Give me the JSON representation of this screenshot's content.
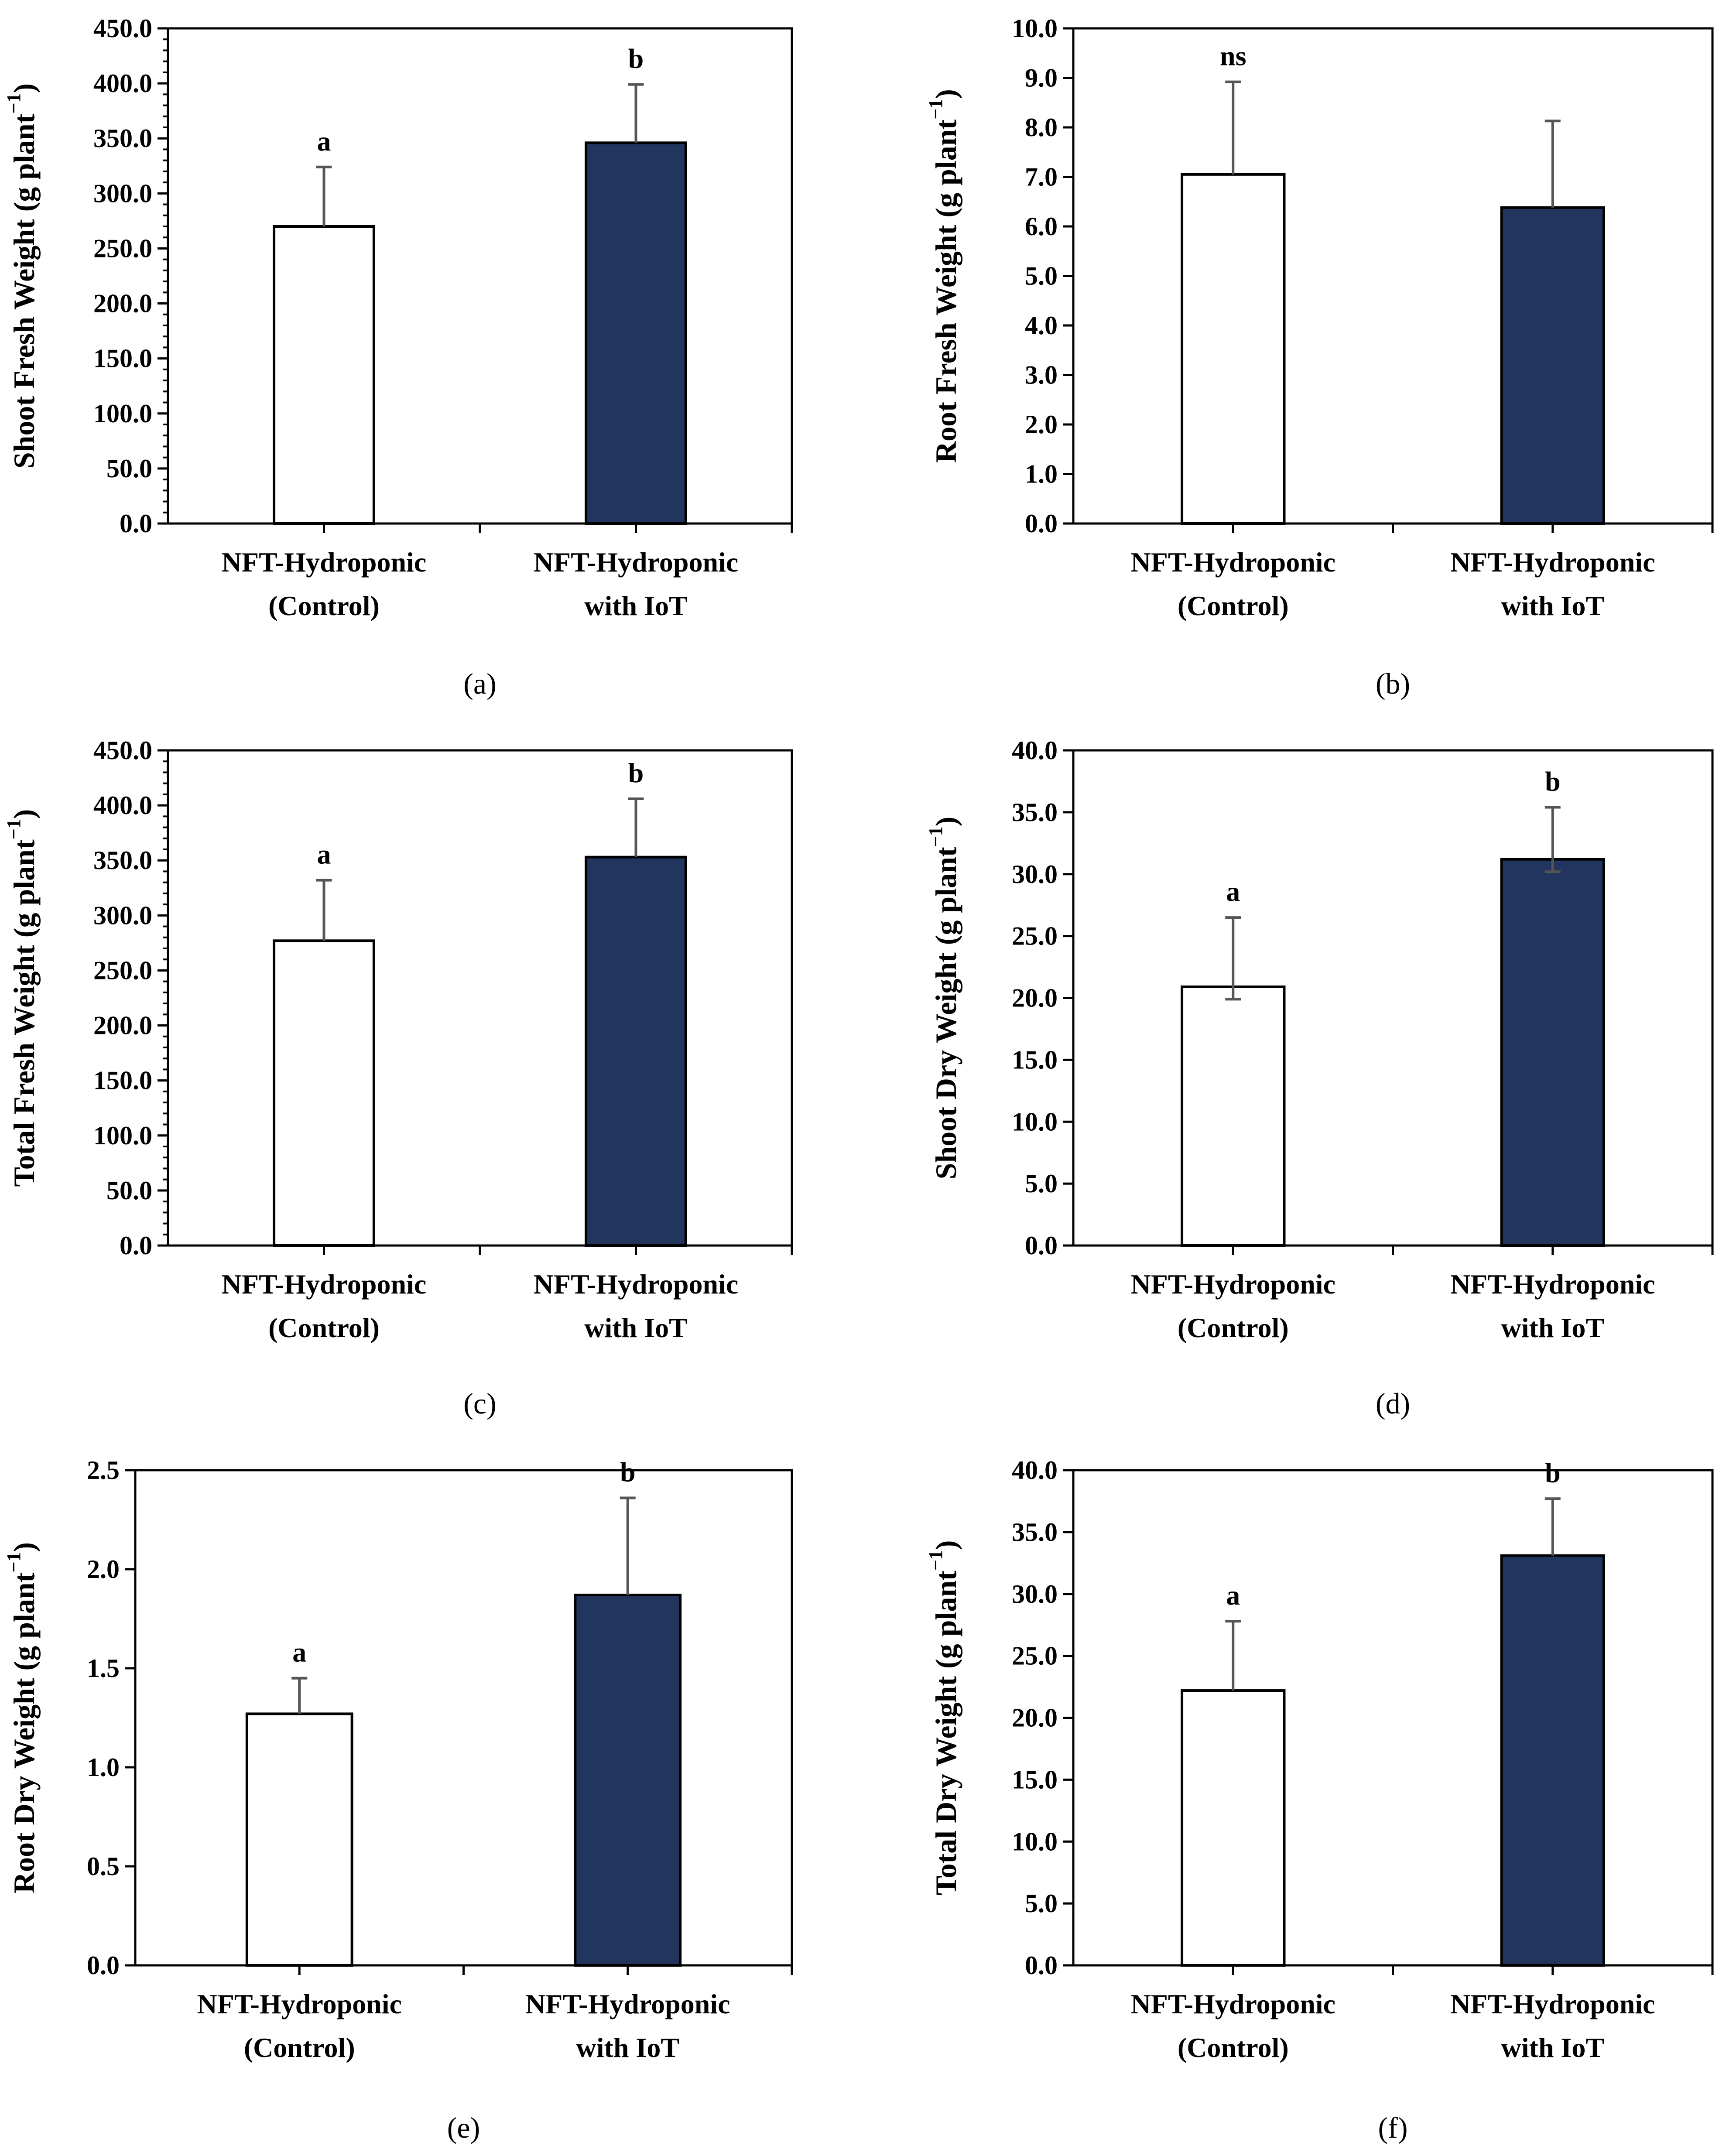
{
  "colors": {
    "control": "#ffffff",
    "iot": "#21355e",
    "axis": "#000000",
    "errorbar": "#555555"
  },
  "chart_data": [
    {
      "type": "bar",
      "panel_label": "(a)",
      "ylabel_main": "Shoot Fresh Weight (g plant",
      "ylabel_sup": "−1",
      "ylabel_close": ")",
      "ylim": [
        0,
        450
      ],
      "ytick_step": 50,
      "ytick_decimals": 1,
      "minor_per_major": 5,
      "categories": [
        [
          "NFT-Hydroponic",
          "(Control)"
        ],
        [
          "NFT-Hydroponic",
          "with IoT"
        ]
      ],
      "values": [
        270.0,
        346.0
      ],
      "errors": [
        54.0,
        53.0
      ],
      "sig": [
        "a",
        "b"
      ]
    },
    {
      "type": "bar",
      "panel_label": "(b)",
      "ylabel_main": "Root Fresh Weight (g plant",
      "ylabel_sup": "−1",
      "ylabel_close": ")",
      "ylim": [
        0,
        10
      ],
      "ytick_step": 1,
      "ytick_decimals": 1,
      "minor_per_major": 0,
      "categories": [
        [
          "NFT-Hydroponic",
          "(Control)"
        ],
        [
          "NFT-Hydroponic",
          "with IoT"
        ]
      ],
      "values": [
        7.05,
        6.38
      ],
      "errors": [
        1.87,
        1.75
      ],
      "sig": [
        "ns",
        ""
      ]
    },
    {
      "type": "bar",
      "panel_label": "(c)",
      "ylabel_main": "Total Fresh Weight (g plant",
      "ylabel_sup": "−1",
      "ylabel_close": ")",
      "ylim": [
        0,
        450
      ],
      "ytick_step": 50,
      "ytick_decimals": 1,
      "minor_per_major": 5,
      "categories": [
        [
          "NFT-Hydroponic",
          "(Control)"
        ],
        [
          "NFT-Hydroponic",
          "with IoT"
        ]
      ],
      "values": [
        277.0,
        353.0
      ],
      "errors": [
        55.0,
        53.0
      ],
      "sig": [
        "a",
        "b"
      ]
    },
    {
      "type": "bar",
      "panel_label": "(d)",
      "ylabel_main": "Shoot Dry Weight (g plant",
      "ylabel_sup": "−1",
      "ylabel_close": ")",
      "ylim": [
        0,
        40
      ],
      "ytick_step": 5,
      "ytick_decimals": 1,
      "minor_per_major": 0,
      "categories": [
        [
          "NFT-Hydroponic",
          "(Control)"
        ],
        [
          "NFT-Hydroponic",
          "with IoT"
        ]
      ],
      "values": [
        20.9,
        31.2
      ],
      "errors": [
        5.6,
        4.2
      ],
      "lower_errors": [
        1.0,
        1.0
      ],
      "sig": [
        "a",
        "b"
      ]
    },
    {
      "type": "bar",
      "panel_label": "(e)",
      "ylabel_main": "Root Dry Weight (g plant",
      "ylabel_sup": "−1",
      "ylabel_close": ")",
      "ylim": [
        0,
        2.5
      ],
      "ytick_step": 0.5,
      "ytick_decimals": 1,
      "minor_per_major": 0,
      "categories": [
        [
          "NFT-Hydroponic",
          "(Control)"
        ],
        [
          "NFT-Hydroponic",
          "with IoT"
        ]
      ],
      "values": [
        1.27,
        1.87
      ],
      "errors": [
        0.18,
        0.49
      ],
      "sig": [
        "a",
        "b"
      ]
    },
    {
      "type": "bar",
      "panel_label": "(f)",
      "ylabel_main": "Total Dry Weight (g plant",
      "ylabel_sup": "−1",
      "ylabel_close": ")",
      "ylim": [
        0,
        40
      ],
      "ytick_step": 5,
      "ytick_decimals": 1,
      "minor_per_major": 0,
      "categories": [
        [
          "NFT-Hydroponic",
          "(Control)"
        ],
        [
          "NFT-Hydroponic",
          "with IoT"
        ]
      ],
      "values": [
        22.2,
        33.1
      ],
      "errors": [
        5.6,
        4.6
      ],
      "sig": [
        "a",
        "b"
      ]
    }
  ]
}
